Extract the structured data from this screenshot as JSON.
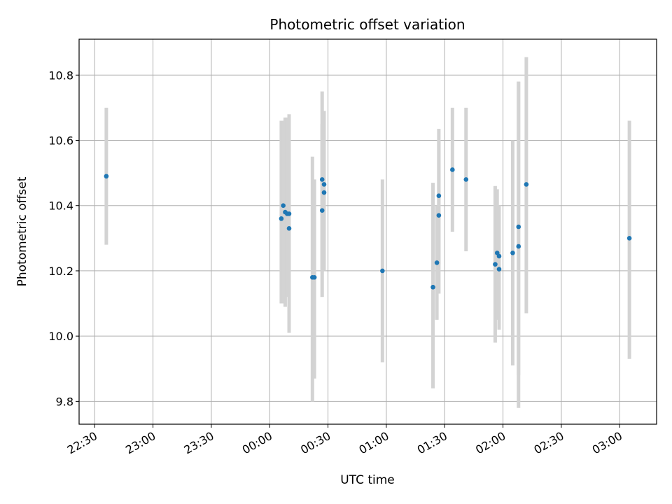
{
  "chart_data": {
    "type": "scatter",
    "title": "Photometric offset variation",
    "xlabel": "UTC time",
    "ylabel": "Photometric offset",
    "xlim": [
      "22:22",
      "03:19"
    ],
    "ylim": [
      9.73,
      10.91
    ],
    "x_ticks": [
      "22:30",
      "23:00",
      "23:30",
      "00:00",
      "00:30",
      "01:00",
      "01:30",
      "02:00",
      "02:30",
      "03:00"
    ],
    "y_ticks": [
      9.8,
      10.0,
      10.2,
      10.4,
      10.6,
      10.8
    ],
    "grid": true,
    "colors": {
      "point": "#1f77b4",
      "errorbar": "#d3d3d3",
      "grid": "#b0b0b0"
    },
    "points": [
      {
        "x": "22:36",
        "y": 10.49,
        "lo": 10.28,
        "hi": 10.7
      },
      {
        "x": "00:06",
        "y": 10.36,
        "lo": 10.1,
        "hi": 10.66
      },
      {
        "x": "00:07",
        "y": 10.4,
        "lo": 10.1,
        "hi": 10.66
      },
      {
        "x": "00:08",
        "y": 10.38,
        "lo": 10.09,
        "hi": 10.67
      },
      {
        "x": "00:09",
        "y": 10.375,
        "lo": 10.12,
        "hi": 10.67
      },
      {
        "x": "00:10",
        "y": 10.375,
        "lo": 10.01,
        "hi": 10.68
      },
      {
        "x": "00:10",
        "y": 10.33,
        "lo": 10.01,
        "hi": 10.65
      },
      {
        "x": "00:22",
        "y": 10.18,
        "lo": 9.8,
        "hi": 10.55
      },
      {
        "x": "00:23",
        "y": 10.18,
        "lo": 9.87,
        "hi": 10.48
      },
      {
        "x": "00:27",
        "y": 10.48,
        "lo": 10.2,
        "hi": 10.75
      },
      {
        "x": "00:27",
        "y": 10.385,
        "lo": 10.12,
        "hi": 10.65
      },
      {
        "x": "00:28",
        "y": 10.44,
        "lo": 10.2,
        "hi": 10.69
      },
      {
        "x": "00:28",
        "y": 10.465,
        "lo": 10.24,
        "hi": 10.69
      },
      {
        "x": "00:58",
        "y": 10.2,
        "lo": 9.92,
        "hi": 10.48
      },
      {
        "x": "01:24",
        "y": 10.15,
        "lo": 9.84,
        "hi": 10.47
      },
      {
        "x": "01:26",
        "y": 10.225,
        "lo": 10.05,
        "hi": 10.4
      },
      {
        "x": "01:27",
        "y": 10.37,
        "lo": 10.13,
        "hi": 10.6
      },
      {
        "x": "01:27",
        "y": 10.43,
        "lo": 10.22,
        "hi": 10.635
      },
      {
        "x": "01:34",
        "y": 10.51,
        "lo": 10.32,
        "hi": 10.7
      },
      {
        "x": "01:41",
        "y": 10.48,
        "lo": 10.26,
        "hi": 10.7
      },
      {
        "x": "01:56",
        "y": 10.22,
        "lo": 9.98,
        "hi": 10.46
      },
      {
        "x": "01:57",
        "y": 10.255,
        "lo": 10.05,
        "hi": 10.45
      },
      {
        "x": "01:58",
        "y": 10.245,
        "lo": 10.03,
        "hi": 10.4
      },
      {
        "x": "01:58",
        "y": 10.205,
        "lo": 10.02,
        "hi": 10.39
      },
      {
        "x": "02:05",
        "y": 10.255,
        "lo": 9.91,
        "hi": 10.6
      },
      {
        "x": "02:08",
        "y": 10.275,
        "lo": 9.78,
        "hi": 10.78
      },
      {
        "x": "02:08",
        "y": 10.335,
        "lo": 9.88,
        "hi": 10.78
      },
      {
        "x": "02:12",
        "y": 10.465,
        "lo": 10.07,
        "hi": 10.855
      },
      {
        "x": "03:05",
        "y": 10.3,
        "lo": 9.93,
        "hi": 10.66
      }
    ]
  }
}
